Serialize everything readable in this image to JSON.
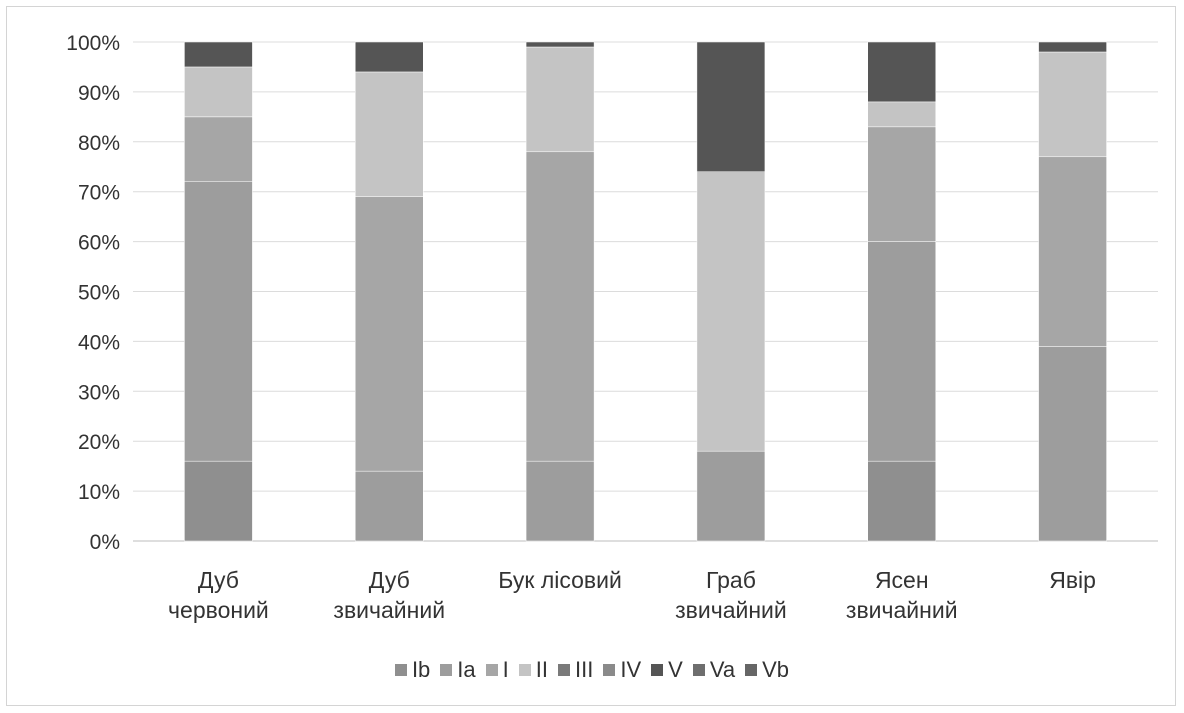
{
  "chart_data": {
    "type": "stacked-bar-100",
    "title": "",
    "xlabel": "",
    "ylabel": "",
    "ylim": [
      0,
      100
    ],
    "y_ticks": [
      "0%",
      "10%",
      "20%",
      "30%",
      "40%",
      "50%",
      "60%",
      "70%",
      "80%",
      "90%",
      "100%"
    ],
    "grid": true,
    "legend_position": "bottom",
    "categories": [
      [
        "Дуб",
        "червоний"
      ],
      [
        "Дуб",
        "звичайний"
      ],
      [
        "Бук лісовий"
      ],
      [
        "Граб",
        "звичайний"
      ],
      [
        "Ясен",
        "звичайний"
      ],
      [
        "Явір"
      ]
    ],
    "series": [
      {
        "name": "Ib",
        "color": "#8f8f8f",
        "values": [
          16,
          0,
          0,
          0,
          16,
          0
        ]
      },
      {
        "name": "Ia",
        "color": "#9d9d9d",
        "values": [
          56,
          14,
          16,
          18,
          44,
          39
        ]
      },
      {
        "name": "I",
        "color": "#a6a6a6",
        "values": [
          13,
          55,
          62,
          0,
          23,
          38
        ]
      },
      {
        "name": "II",
        "color": "#c4c4c4",
        "values": [
          10,
          25,
          21,
          56,
          5,
          21
        ]
      },
      {
        "name": "III",
        "color": "#7a7a7a",
        "values": [
          0,
          0,
          0,
          0,
          0,
          0
        ]
      },
      {
        "name": "IV",
        "color": "#8a8a8a",
        "values": [
          0,
          0,
          0,
          0,
          0,
          0
        ]
      },
      {
        "name": "V",
        "color": "#555555",
        "values": [
          5,
          6,
          1,
          26,
          12,
          2
        ]
      },
      {
        "name": "Va",
        "color": "#6e6e6e",
        "values": [
          0,
          0,
          0,
          0,
          0,
          0
        ]
      },
      {
        "name": "Vb",
        "color": "#666666",
        "values": [
          0,
          0,
          0,
          0,
          0,
          0
        ]
      }
    ]
  }
}
